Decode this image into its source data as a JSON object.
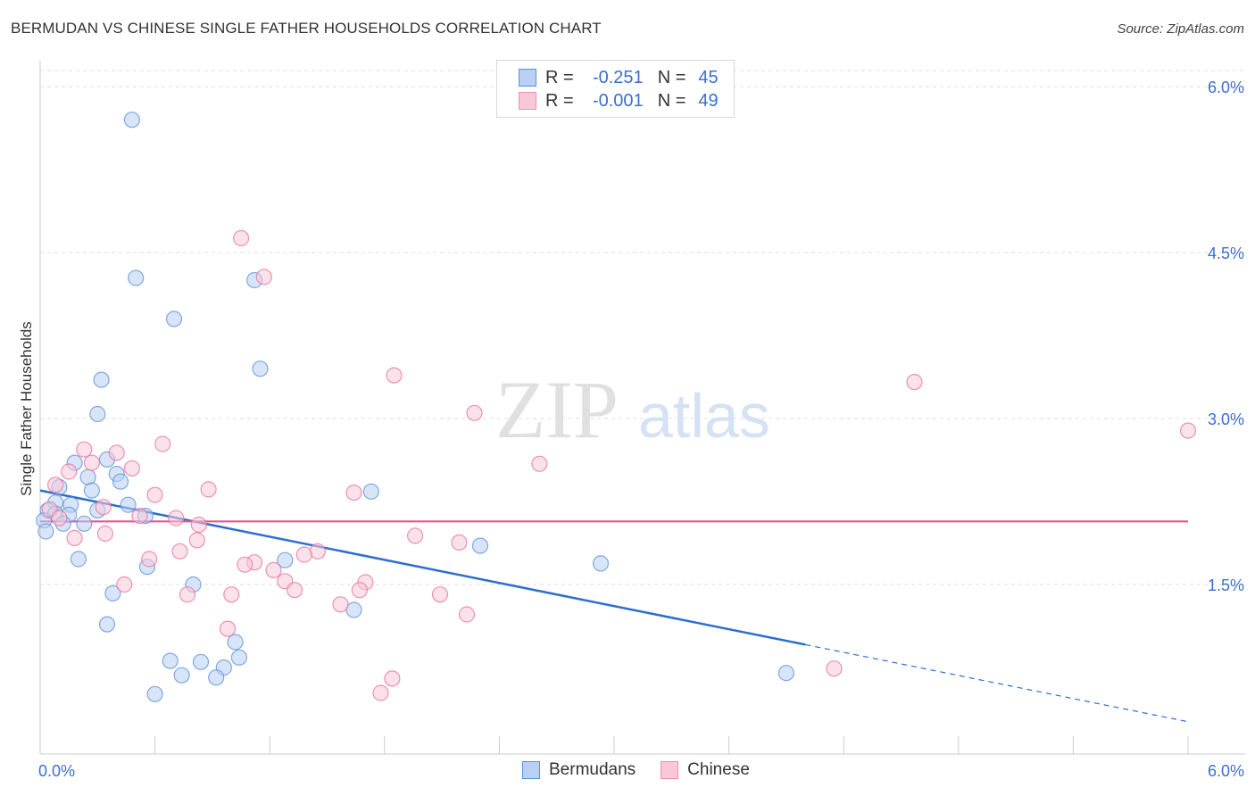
{
  "title": "BERMUDAN VS CHINESE SINGLE FATHER HOUSEHOLDS CORRELATION CHART",
  "source": "Source: ZipAtlas.com",
  "watermark": {
    "zip": "ZIP",
    "atlas": "atlas"
  },
  "legend": {
    "rows": [
      {
        "r_label": "R =",
        "r_value": "-0.251",
        "n_label": "N =",
        "n_value": "45",
        "fill": "#b8d0f2",
        "stroke": "#5a8fd8"
      },
      {
        "r_label": "R =",
        "r_value": "-0.001",
        "n_label": "N =",
        "n_value": "49",
        "fill": "#f8c8d8",
        "stroke": "#e890b0"
      }
    ]
  },
  "bottom_legend": [
    {
      "label": "Bermudans",
      "fill": "#b8d0f2",
      "stroke": "#5a8fd8"
    },
    {
      "label": "Chinese",
      "fill": "#f8c8d8",
      "stroke": "#e890b0"
    }
  ],
  "chart_data": {
    "type": "scatter",
    "title": "BERMUDAN VS CHINESE SINGLE FATHER HOUSEHOLDS CORRELATION CHART",
    "xlabel": "",
    "ylabel": "Single Father Households",
    "xlim": [
      0,
      6.0
    ],
    "ylim": [
      0,
      6.3
    ],
    "x_tick_labels": [
      "0.0%",
      "6.0%"
    ],
    "y_ticks": [
      1.5,
      3.0,
      4.5,
      6.0
    ],
    "y_tick_labels": [
      "1.5%",
      "3.0%",
      "4.5%",
      "6.0%"
    ],
    "grid": true,
    "legend_placement": "top-center",
    "series": [
      {
        "name": "Bermudans",
        "color": "#5a8fd8",
        "fill": "#b8d0f2",
        "points": [
          [
            0.48,
            5.7
          ],
          [
            0.5,
            4.27
          ],
          [
            1.12,
            4.25
          ],
          [
            0.7,
            3.9
          ],
          [
            1.15,
            3.45
          ],
          [
            0.32,
            3.35
          ],
          [
            0.3,
            3.04
          ],
          [
            0.18,
            2.6
          ],
          [
            0.35,
            2.63
          ],
          [
            0.4,
            2.5
          ],
          [
            0.25,
            2.47
          ],
          [
            0.42,
            2.43
          ],
          [
            0.1,
            2.38
          ],
          [
            0.27,
            2.35
          ],
          [
            1.73,
            2.34
          ],
          [
            0.08,
            2.24
          ],
          [
            0.16,
            2.22
          ],
          [
            0.46,
            2.22
          ],
          [
            0.04,
            2.17
          ],
          [
            0.08,
            2.14
          ],
          [
            0.15,
            2.13
          ],
          [
            0.3,
            2.17
          ],
          [
            0.55,
            2.12
          ],
          [
            0.02,
            2.08
          ],
          [
            0.12,
            2.05
          ],
          [
            0.23,
            2.05
          ],
          [
            0.03,
            1.98
          ],
          [
            2.3,
            1.85
          ],
          [
            0.2,
            1.73
          ],
          [
            1.28,
            1.72
          ],
          [
            2.93,
            1.69
          ],
          [
            0.56,
            1.66
          ],
          [
            0.8,
            1.5
          ],
          [
            0.38,
            1.42
          ],
          [
            1.64,
            1.27
          ],
          [
            0.35,
            1.14
          ],
          [
            1.02,
            0.98
          ],
          [
            1.04,
            0.84
          ],
          [
            0.68,
            0.81
          ],
          [
            0.84,
            0.8
          ],
          [
            0.96,
            0.75
          ],
          [
            0.74,
            0.68
          ],
          [
            0.92,
            0.66
          ],
          [
            3.9,
            0.7
          ],
          [
            0.6,
            0.51
          ]
        ],
        "trend": {
          "x_start": 0.0,
          "y_start": 2.35,
          "x_solid_end": 4.0,
          "x_end": 6.0,
          "y_end": 0.26
        }
      },
      {
        "name": "Chinese",
        "color": "#e8709a",
        "fill": "#f8c8d8",
        "points": [
          [
            1.05,
            4.63
          ],
          [
            1.17,
            4.28
          ],
          [
            1.85,
            3.39
          ],
          [
            4.57,
            3.33
          ],
          [
            2.27,
            3.05
          ],
          [
            6.0,
            2.89
          ],
          [
            0.64,
            2.77
          ],
          [
            0.23,
            2.72
          ],
          [
            0.4,
            2.69
          ],
          [
            0.27,
            2.6
          ],
          [
            2.61,
            2.59
          ],
          [
            0.48,
            2.55
          ],
          [
            0.15,
            2.52
          ],
          [
            0.08,
            2.4
          ],
          [
            0.88,
            2.36
          ],
          [
            1.64,
            2.33
          ],
          [
            0.6,
            2.31
          ],
          [
            0.33,
            2.2
          ],
          [
            0.05,
            2.18
          ],
          [
            0.52,
            2.12
          ],
          [
            0.1,
            2.1
          ],
          [
            0.71,
            2.1
          ],
          [
            0.83,
            2.04
          ],
          [
            0.34,
            1.96
          ],
          [
            1.96,
            1.94
          ],
          [
            0.18,
            1.92
          ],
          [
            0.82,
            1.9
          ],
          [
            2.19,
            1.88
          ],
          [
            0.73,
            1.8
          ],
          [
            1.45,
            1.8
          ],
          [
            1.38,
            1.77
          ],
          [
            0.57,
            1.73
          ],
          [
            1.12,
            1.7
          ],
          [
            1.07,
            1.68
          ],
          [
            1.22,
            1.63
          ],
          [
            1.28,
            1.53
          ],
          [
            1.7,
            1.52
          ],
          [
            0.44,
            1.5
          ],
          [
            1.67,
            1.45
          ],
          [
            1.33,
            1.45
          ],
          [
            0.77,
            1.41
          ],
          [
            1.0,
            1.41
          ],
          [
            2.09,
            1.41
          ],
          [
            1.57,
            1.32
          ],
          [
            2.23,
            1.23
          ],
          [
            0.98,
            1.1
          ],
          [
            4.15,
            0.74
          ],
          [
            1.84,
            0.65
          ],
          [
            1.78,
            0.52
          ]
        ],
        "trend": {
          "x_start": 0.0,
          "y_start": 2.07,
          "x_end": 6.0,
          "y_end": 2.07
        }
      }
    ]
  }
}
